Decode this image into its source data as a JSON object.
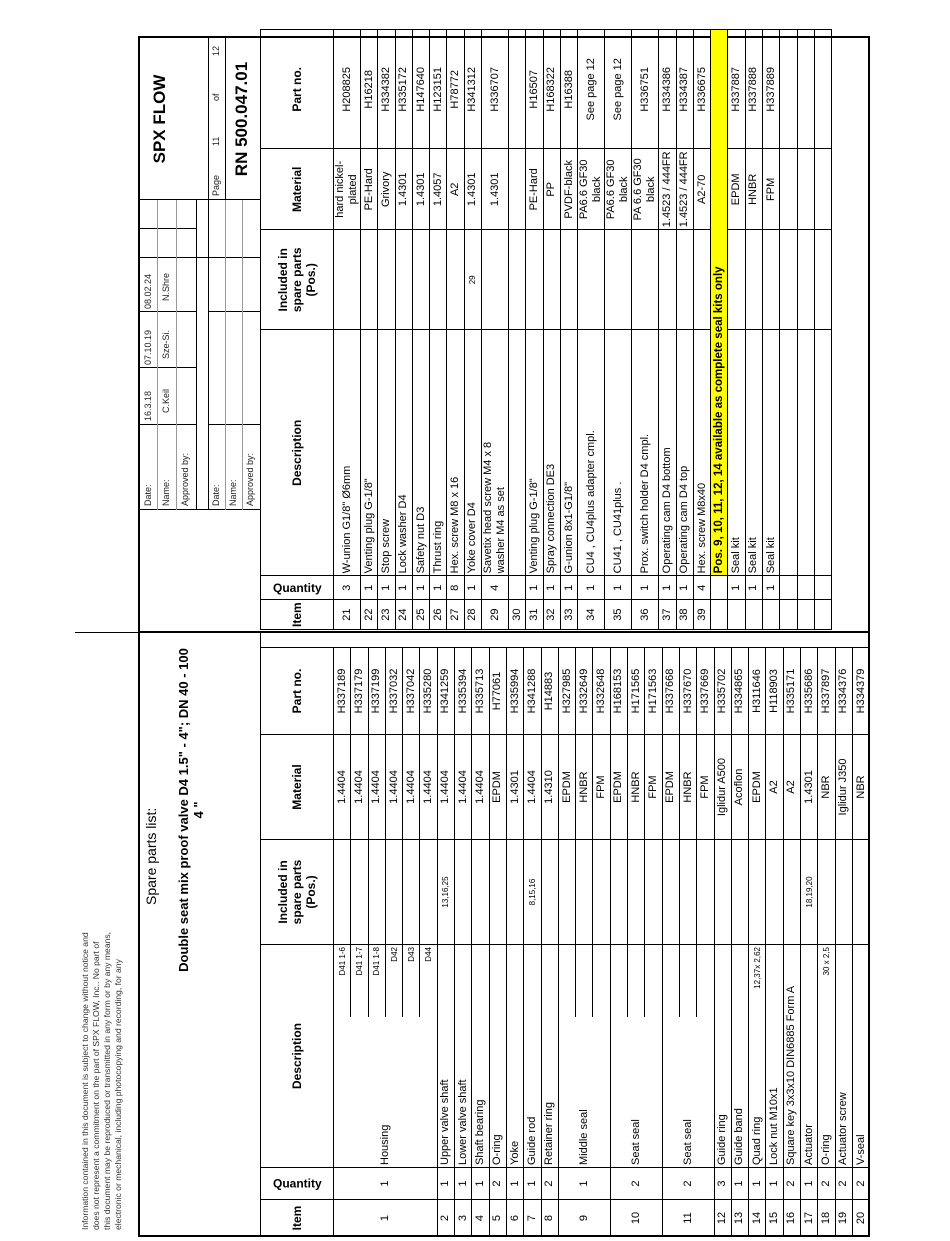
{
  "disclaimer": [
    "Information contained in this document is subject to change without notice and",
    "does not represent a commitment on the part of SPX FLOW, Inc.. No part of",
    "this document may be reproduced or transmitted in any form or by any means,",
    "electronic or mechanical, including photocopying and recording, for any"
  ],
  "heading": "Spare parts list:",
  "title_line1": "Double seat mix proof valve D4 1.5\" - 4\"; DN 40 - 100",
  "title_line2": "4 \"",
  "title_block": {
    "company": "SPX FLOW",
    "page_label": "Page",
    "page": "11",
    "of_label": "of",
    "total_pages": "12",
    "doc_number": "RN 500.047.01",
    "upper": {
      "labels": [
        "Date:",
        "Name:",
        "Approved by:"
      ],
      "dates": [
        "16.3.18",
        "07.10.19",
        "08.02.24"
      ],
      "names": [
        "C.Keil",
        "Sze-Si.",
        "N.Shre"
      ]
    },
    "lower": {
      "labels": [
        "Date:",
        "Name:",
        "Approved by:"
      ]
    }
  },
  "headers": {
    "item": "Item",
    "qty": "Quantity",
    "desc": "Description",
    "incl": [
      "Included in",
      "spare parts",
      "(Pos.)"
    ],
    "mat": "Material",
    "part": "Part no."
  },
  "left_rows": [
    {
      "item": "1",
      "qty": "1",
      "desc": "Housing",
      "subs": [
        {
          "sub": "D41 1-6",
          "mat": "1.4404",
          "part": "H337189"
        },
        {
          "sub": "D41 1-7",
          "mat": "1.4404",
          "part": "H337179"
        },
        {
          "sub": "D41 1-8",
          "mat": "1.4404",
          "part": "H337199"
        },
        {
          "sub": "D42",
          "mat": "1.4404",
          "part": "H337032"
        },
        {
          "sub": "D43",
          "mat": "1.4404",
          "part": "H337042"
        },
        {
          "sub": "D44",
          "mat": "1.4404",
          "part": "H335280"
        }
      ]
    },
    {
      "item": "2",
      "qty": "1",
      "desc": "Upper valve shaft",
      "incl": "13,16,25",
      "mat": "1.4404",
      "part": "H341259"
    },
    {
      "item": "3",
      "qty": "1",
      "desc": "Lower valve shaft",
      "mat": "1.4404",
      "part": "H335394"
    },
    {
      "item": "4",
      "qty": "1",
      "desc": "Shaft bearing",
      "mat": "1.4404",
      "part": "H335713"
    },
    {
      "item": "5",
      "qty": "2",
      "desc": "O-ring",
      "mat": "EPDM",
      "part": "H77061"
    },
    {
      "item": "6",
      "qty": "1",
      "desc": "Yoke",
      "mat": "1.4301",
      "part": "H335994"
    },
    {
      "item": "7",
      "qty": "1",
      "desc": "Guide rod",
      "incl": "8,15,16",
      "mat": "1.4404",
      "part": "H341288"
    },
    {
      "item": "8",
      "qty": "2",
      "desc": "Retainer ring",
      "mat": "1.4310",
      "part": "H14883"
    },
    {
      "item": "9",
      "qty": "1",
      "desc": "Middle seal",
      "subs": [
        {
          "mat": "EPDM",
          "part": "H327985"
        },
        {
          "mat": "HNBR",
          "part": "H332649"
        },
        {
          "mat": "FPM",
          "part": "H332648"
        }
      ]
    },
    {
      "item": "10",
      "qty": "2",
      "desc": "Seat seal",
      "subs": [
        {
          "mat": "EPDM",
          "part": "H168153"
        },
        {
          "mat": "HNBR",
          "part": "H171565"
        },
        {
          "mat": "FPM",
          "part": "H171563"
        }
      ]
    },
    {
      "item": "11",
      "qty": "2",
      "desc": "Seat seal",
      "subs": [
        {
          "mat": "EPDM",
          "part": "H337668"
        },
        {
          "mat": "HNBR",
          "part": "H337670"
        },
        {
          "mat": "FPM",
          "part": "H337669"
        }
      ]
    },
    {
      "item": "12",
      "qty": "3",
      "desc": "Guide ring",
      "mat": "Iglidur A500",
      "part": "H335702"
    },
    {
      "item": "13",
      "qty": "1",
      "desc": "Guide band",
      "mat": "Acoflon",
      "part": "H334865"
    },
    {
      "item": "14",
      "qty": "1",
      "desc": "Quad ring",
      "note": "12,37x 2,62",
      "mat": "EPDM",
      "part": "H311646"
    },
    {
      "item": "15",
      "qty": "1",
      "desc": "Lock nut M10x1",
      "mat": "A2",
      "part": "H118903"
    },
    {
      "item": "16",
      "qty": "2",
      "desc": "Square key 3x3x10 DIN6885 Form A",
      "mat": "A2",
      "part": "H335171"
    },
    {
      "item": "17",
      "qty": "1",
      "desc": "Actuator",
      "incl": "18,19,20",
      "mat": "1.4301",
      "part": "H335686"
    },
    {
      "item": "18",
      "qty": "2",
      "desc": "O-ring",
      "note": "30 x 2,5",
      "mat": "NBR",
      "part": "H337897"
    },
    {
      "item": "19",
      "qty": "2",
      "desc": "Actuator screw",
      "mat": "Iglidur J350",
      "part": "H334376"
    },
    {
      "item": "20",
      "qty": "2",
      "desc": "V-seal",
      "mat": "NBR",
      "part": "H334379"
    }
  ],
  "right_rows": [
    {
      "item": "21",
      "qty": "3",
      "desc": [
        "W-union G1/8\" Ø6mm"
      ],
      "mat": [
        "hard nickel-plated"
      ],
      "part": "H208825"
    },
    {
      "item": "22",
      "qty": "1",
      "desc": [
        "Venting plug G-1/8\""
      ],
      "mat": [
        "PE-Hard"
      ],
      "part": "H16218"
    },
    {
      "item": "23",
      "qty": "1",
      "desc": [
        "Stop screw"
      ],
      "mat": [
        "Grivory"
      ],
      "part": "H334382"
    },
    {
      "item": "24",
      "qty": "1",
      "desc": [
        "Lock washer D4"
      ],
      "mat": [
        "1.4301"
      ],
      "part": "H335172"
    },
    {
      "item": "25",
      "qty": "1",
      "desc": [
        "Safety nut D3"
      ],
      "mat": [
        "1.4301"
      ],
      "part": "H147640"
    },
    {
      "item": "26",
      "qty": "1",
      "desc": [
        "Thrust ring"
      ],
      "mat": [
        "1.4057"
      ],
      "part": "H123151"
    },
    {
      "item": "27",
      "qty": "8",
      "desc": [
        "Hex. screw M8 x 16"
      ],
      "mat": [
        "A2"
      ],
      "part": "H78772"
    },
    {
      "item": "28",
      "qty": "1",
      "desc": [
        "Yoke cover D4"
      ],
      "incl": "29",
      "mat": [
        "1.4301"
      ],
      "part": "H341312"
    },
    {
      "item": "29",
      "qty": "4",
      "span": 2,
      "desc": [
        "Savetix  head screw M4 x 8",
        "washer M4 as set"
      ],
      "mat": [
        "1.4301"
      ],
      "part": "H336707"
    },
    {
      "item": "30",
      "qty": "",
      "desc": [
        ""
      ],
      "mat": [
        ""
      ],
      "part": ""
    },
    {
      "item": "31",
      "qty": "1",
      "desc": [
        "Venting plug G-1/8\""
      ],
      "mat": [
        "PE-Hard"
      ],
      "part": "H16507"
    },
    {
      "item": "32",
      "qty": "1",
      "desc": [
        "Spray connection DE3"
      ],
      "mat": [
        "PP"
      ],
      "part": "H168322"
    },
    {
      "item": "33",
      "qty": "1",
      "desc": [
        "G-union 8x1-G1/8\""
      ],
      "mat": [
        "PVDF-black"
      ],
      "part": "H16388"
    },
    {
      "item": "34",
      "qty": "1",
      "span": 2,
      "desc": [
        "CU4 , CU4plus adapter cmpl."
      ],
      "mat": [
        "PA6.6 GF30",
        "black"
      ],
      "part": "See page 12"
    },
    {
      "item": "35",
      "qty": "1",
      "span": 2,
      "desc": [
        "CU41 , CU41plus ."
      ],
      "mat": [
        "PA6.6 GF30",
        "black"
      ],
      "part": "See page 12"
    },
    {
      "item": "36",
      "qty": "1",
      "span": 2,
      "desc": [
        "Prox. switch holder D4 cmpl."
      ],
      "mat": [
        "PA 6.6 GF30",
        "black"
      ],
      "part": "H336751"
    },
    {
      "item": "37",
      "qty": "1",
      "desc": [
        "Operating cam D4 bottom"
      ],
      "mat": [
        "1.4523 / 444FR"
      ],
      "part": "H334386"
    },
    {
      "item": "38",
      "qty": "1",
      "desc": [
        "Operating cam D4 top"
      ],
      "mat": [
        "1.4523 / 444FR"
      ],
      "part": "H334387"
    },
    {
      "item": "39",
      "qty": "4",
      "desc": [
        "Hex. screw M8x40"
      ],
      "mat": [
        "A2-70"
      ],
      "part": "H336675"
    },
    {
      "notice": "Pos. 9, 10, 11, 12, 14 available as complete seal kits only",
      "span": 2
    },
    {
      "item": "",
      "qty": "1",
      "desc": [
        "Seal kit"
      ],
      "mat": [
        "EPDM"
      ],
      "part": "H337887"
    },
    {
      "item": "",
      "qty": "1",
      "desc": [
        "Seal kit"
      ],
      "mat": [
        "HNBR"
      ],
      "part": "H337888"
    },
    {
      "item": "",
      "qty": "1",
      "desc": [
        "Seal kit"
      ],
      "mat": [
        "FPM"
      ],
      "part": "H337889"
    },
    {
      "item": "",
      "qty": "",
      "desc": [
        ""
      ],
      "mat": [
        ""
      ],
      "part": ""
    },
    {
      "item": "",
      "qty": "",
      "desc": [
        ""
      ],
      "mat": [
        ""
      ],
      "part": ""
    },
    {
      "item": "",
      "qty": "",
      "desc": [
        ""
      ],
      "mat": [
        ""
      ],
      "part": ""
    }
  ],
  "colors": {
    "notice_highlight": "#ffff00",
    "border": "#000000"
  }
}
